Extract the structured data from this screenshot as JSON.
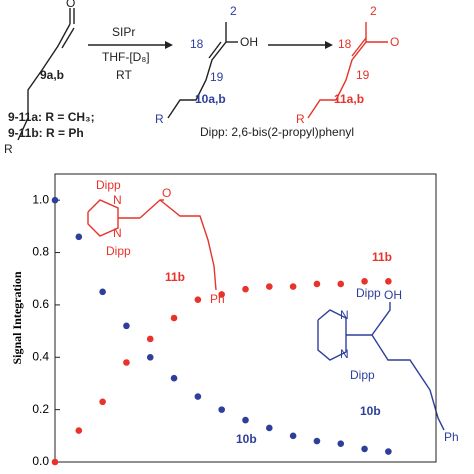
{
  "scheme": {
    "texts": [
      "9a,b",
      "SIPr",
      "THF-[D₈]",
      "RT",
      "9-11a: R = CH₃;",
      "9-11b: R = Ph",
      "Dipp: 2,6-bis(2-propyl)phenyl",
      "18",
      "19",
      "2",
      "OH",
      "10a,b",
      "R",
      "18",
      "19",
      "2",
      "O",
      "11a,b",
      "R",
      "O",
      "R"
    ]
  },
  "chart_data": {
    "type": "scatter",
    "y_label": "Signal Integration",
    "xlim": [
      0,
      16
    ],
    "ylim": [
      0,
      1.1
    ],
    "yticks": [
      {
        "value": 0,
        "label": "0.0"
      },
      {
        "value": 0.2,
        "label": "0.2"
      },
      {
        "value": 0.4,
        "label": "0.4"
      },
      {
        "value": 0.6,
        "label": "0.6"
      },
      {
        "value": 0.8,
        "label": "0.8"
      },
      {
        "value": 1.0,
        "label": "1.0"
      }
    ],
    "series": [
      {
        "name": "11b",
        "color": "#e8322a",
        "x": [
          0,
          1,
          2,
          3,
          4,
          5,
          6,
          7,
          8,
          9,
          10,
          11,
          12,
          13,
          14
        ],
        "values": [
          0,
          0.12,
          0.23,
          0.38,
          0.47,
          0.55,
          0.62,
          0.64,
          0.66,
          0.67,
          0.67,
          0.68,
          0.68,
          0.69,
          0.69
        ]
      },
      {
        "name": "10b",
        "color": "#2d3f9b",
        "x": [
          0,
          1,
          2,
          3,
          4,
          5,
          6,
          7,
          8,
          9,
          10,
          11,
          12,
          13,
          14
        ],
        "values": [
          1.0,
          0.86,
          0.65,
          0.52,
          0.4,
          0.32,
          0.25,
          0.2,
          0.16,
          0.13,
          0.1,
          0.08,
          0.07,
          0.05,
          0.04
        ]
      }
    ],
    "structure_labels": {
      "red": [
        "Dipp",
        "N",
        "N",
        "Dipp",
        "O",
        "Ph",
        "11b"
      ],
      "blue": [
        "Dipp",
        "N",
        "N",
        "Dipp",
        "OH",
        "Ph",
        "10b"
      ]
    }
  }
}
